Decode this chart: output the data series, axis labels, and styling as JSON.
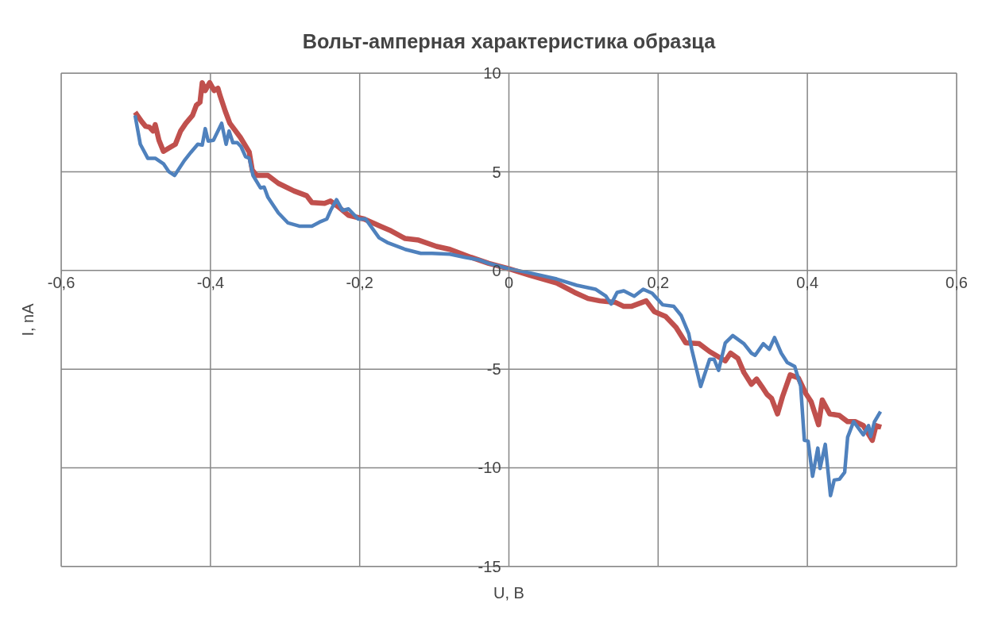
{
  "chart_data": {
    "type": "line",
    "title": "Вольт-амперная характеристика образца",
    "xlabel": "U, B",
    "ylabel": "I, nA",
    "xlim": [
      -0.6,
      0.6
    ],
    "xticks": [
      {
        "value": -0.6,
        "label": "-0,6"
      },
      {
        "value": -0.4,
        "label": "-0,4"
      },
      {
        "value": -0.2,
        "label": "-0,2"
      },
      {
        "value": 0,
        "label": "0"
      },
      {
        "value": 0.2,
        "label": "0,2"
      },
      {
        "value": 0.4,
        "label": "0,4"
      },
      {
        "value": 0.6,
        "label": "0,6"
      }
    ],
    "ylim": [
      -15,
      10
    ],
    "yticks": [
      -15,
      -10,
      -5,
      0,
      5,
      10
    ],
    "grid": true,
    "line_style": "solid",
    "marker": "none",
    "series": [
      {
        "color": "#c0504d",
        "x": [
          -0.501,
          -0.492,
          -0.487,
          -0.482,
          -0.477,
          -0.474,
          -0.469,
          -0.463,
          -0.456,
          -0.447,
          -0.44,
          -0.433,
          -0.424,
          -0.419,
          -0.414,
          -0.411,
          -0.407,
          -0.401,
          -0.395,
          -0.39,
          -0.387,
          -0.38,
          -0.374,
          -0.36,
          -0.348,
          -0.344,
          -0.338,
          -0.323,
          -0.309,
          -0.288,
          -0.271,
          -0.264,
          -0.247,
          -0.239,
          -0.229,
          -0.215,
          -0.194,
          -0.17,
          -0.16,
          -0.139,
          -0.121,
          -0.097,
          -0.079,
          -0.051,
          -0.027,
          0.001,
          0.028,
          0.064,
          0.088,
          0.106,
          0.122,
          0.143,
          0.154,
          0.164,
          0.184,
          0.195,
          0.21,
          0.224,
          0.237,
          0.255,
          0.269,
          0.29,
          0.297,
          0.307,
          0.315,
          0.325,
          0.332,
          0.339,
          0.346,
          0.352,
          0.36,
          0.367,
          0.377,
          0.388,
          0.398,
          0.405,
          0.415,
          0.42,
          0.43,
          0.443,
          0.454,
          0.464,
          0.475,
          0.487,
          0.492,
          0.499
        ],
        "values": [
          8.02,
          7.54,
          7.31,
          7.27,
          7.07,
          7.39,
          6.6,
          6.04,
          6.2,
          6.4,
          7.07,
          7.46,
          7.86,
          8.37,
          8.53,
          9.52,
          9.12,
          9.52,
          9.12,
          9.24,
          8.85,
          8.06,
          7.46,
          6.75,
          6.0,
          5.09,
          4.82,
          4.82,
          4.42,
          4.03,
          3.79,
          3.44,
          3.4,
          3.52,
          3.24,
          2.8,
          2.61,
          2.21,
          2.05,
          1.62,
          1.54,
          1.22,
          1.07,
          0.67,
          0.36,
          0.08,
          -0.24,
          -0.63,
          -1.11,
          -1.42,
          -1.54,
          -1.62,
          -1.82,
          -1.82,
          -1.54,
          -2.09,
          -2.33,
          -2.88,
          -3.67,
          -3.71,
          -4.11,
          -4.58,
          -4.19,
          -4.46,
          -5.17,
          -5.77,
          -5.5,
          -5.88,
          -6.28,
          -6.48,
          -7.27,
          -6.36,
          -5.29,
          -5.45,
          -6.24,
          -6.64,
          -7.82,
          -6.56,
          -7.27,
          -7.35,
          -7.66,
          -7.66,
          -7.86,
          -8.61,
          -7.86,
          -7.94
        ]
      },
      {
        "color": "#4f81bd",
        "x": [
          -0.501,
          -0.494,
          -0.484,
          -0.474,
          -0.463,
          -0.456,
          -0.448,
          -0.435,
          -0.426,
          -0.417,
          -0.411,
          -0.407,
          -0.403,
          -0.396,
          -0.385,
          -0.379,
          -0.375,
          -0.37,
          -0.364,
          -0.359,
          -0.353,
          -0.348,
          -0.343,
          -0.333,
          -0.328,
          -0.323,
          -0.309,
          -0.296,
          -0.281,
          -0.264,
          -0.254,
          -0.244,
          -0.239,
          -0.231,
          -0.223,
          -0.215,
          -0.202,
          -0.192,
          -0.174,
          -0.163,
          -0.139,
          -0.118,
          -0.103,
          -0.079,
          -0.059,
          -0.041,
          -0.027,
          0.001,
          0.028,
          0.064,
          0.091,
          0.116,
          0.13,
          0.137,
          0.145,
          0.154,
          0.168,
          0.18,
          0.192,
          0.206,
          0.221,
          0.231,
          0.241,
          0.245,
          0.257,
          0.269,
          0.275,
          0.281,
          0.29,
          0.3,
          0.315,
          0.325,
          0.33,
          0.341,
          0.349,
          0.356,
          0.365,
          0.373,
          0.383,
          0.391,
          0.396,
          0.401,
          0.407,
          0.414,
          0.417,
          0.424,
          0.431,
          0.436,
          0.443,
          0.45,
          0.454,
          0.462,
          0.475,
          0.482,
          0.485,
          0.49,
          0.498
        ],
        "values": [
          7.86,
          6.4,
          5.69,
          5.69,
          5.41,
          5.02,
          4.82,
          5.57,
          6.0,
          6.4,
          6.36,
          7.19,
          6.56,
          6.6,
          7.46,
          6.4,
          7.07,
          6.48,
          6.48,
          6.28,
          5.77,
          5.69,
          4.82,
          4.19,
          4.23,
          3.71,
          2.92,
          2.41,
          2.25,
          2.25,
          2.45,
          2.61,
          3.04,
          3.59,
          3.04,
          3.12,
          2.61,
          2.61,
          1.66,
          1.42,
          1.07,
          0.87,
          0.87,
          0.83,
          0.67,
          0.55,
          0.36,
          0.08,
          -0.12,
          -0.43,
          -0.75,
          -0.95,
          -1.3,
          -1.7,
          -1.11,
          -1.03,
          -1.3,
          -0.95,
          -1.15,
          -1.74,
          -1.82,
          -2.29,
          -3.2,
          -3.99,
          -5.88,
          -4.5,
          -4.5,
          -5.06,
          -3.67,
          -3.3,
          -3.71,
          -4.19,
          -4.3,
          -3.71,
          -3.99,
          -3.4,
          -4.19,
          -4.66,
          -4.86,
          -5.85,
          -8.61,
          -8.65,
          -10.43,
          -9.0,
          -10.03,
          -8.81,
          -11.41,
          -10.62,
          -10.58,
          -10.23,
          -8.45,
          -7.66,
          -8.33,
          -7.86,
          -8.41,
          -7.66,
          -7.15
        ]
      }
    ]
  }
}
